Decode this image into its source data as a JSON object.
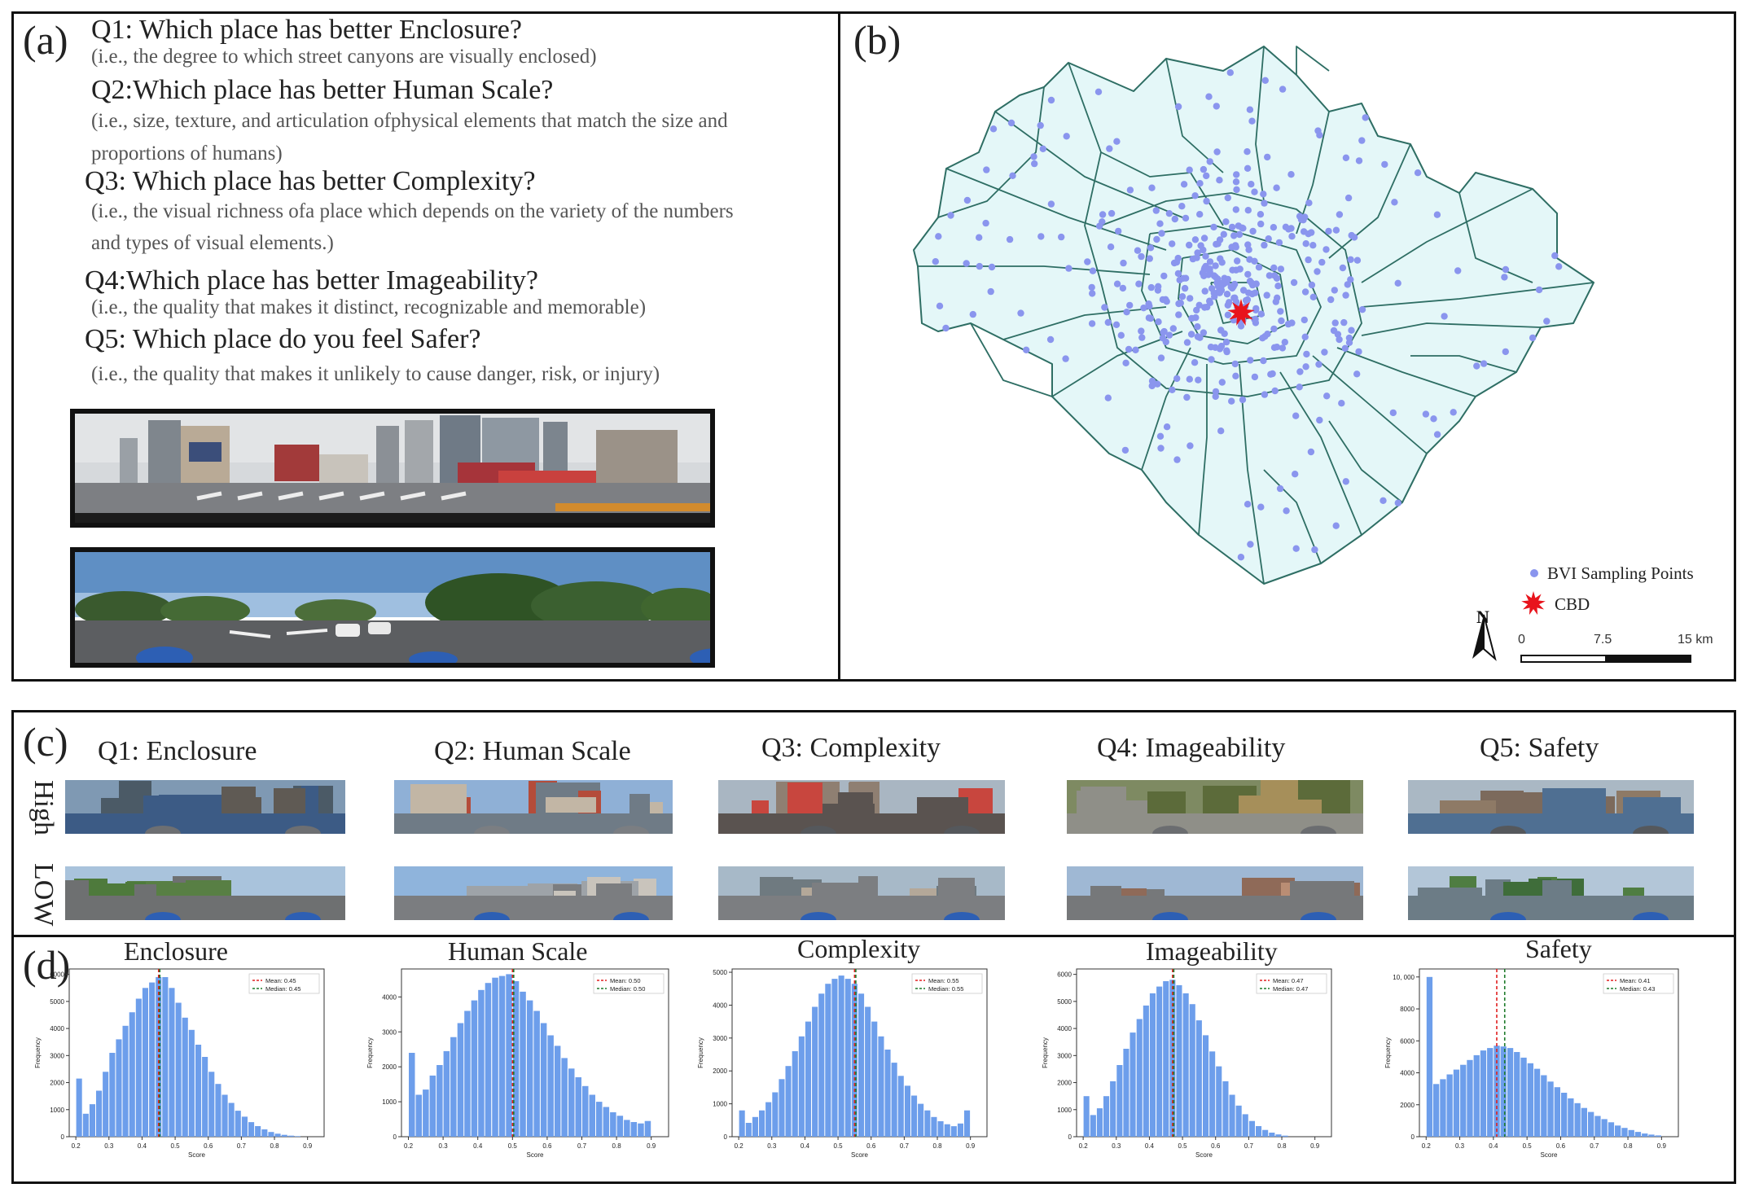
{
  "panel_a": {
    "label": "(a)",
    "questions": [
      {
        "title": "Q1: Which place has better Enclosure?",
        "lines": [
          "(i.e., the degree to which street canyons are visually enclosed)"
        ]
      },
      {
        "title": "Q2:Which place has better Human Scale?",
        "lines": [
          "(i.e., size, texture, and articulation ofphysical elements that match the size and",
          "proportions of humans)"
        ]
      },
      {
        "title": "Q3: Which place has better Complexity?",
        "lines": [
          "(i.e., the visual richness ofa place which depends on the variety of the numbers",
          "and types of visual elements.)"
        ]
      },
      {
        "title": "Q4:Which place has better Imageability?",
        "lines": [
          "(i.e., the quality that makes it distinct, recognizable and memorable)"
        ]
      },
      {
        "title": "Q5: Which place do you feel Safer?",
        "lines": [
          "(i.e., the quality that makes it unlikely to cause danger, risk, or injury)"
        ]
      }
    ]
  },
  "panel_b": {
    "label": "(b)",
    "legend": {
      "points": "BVI Sampling Points",
      "cbd": "CBD"
    },
    "north": "N",
    "scalebar": {
      "t0": "0",
      "t1": "7.5",
      "t2": "15 km"
    },
    "colors": {
      "fill": "#e4f7f8",
      "boundary": "#2e6e64",
      "points": "#8a95ee",
      "cbd": "#e8141c"
    }
  },
  "panel_c": {
    "label": "(c)",
    "rows": [
      "High",
      "LOW"
    ],
    "titles": [
      "Q1: Enclosure",
      "Q2: Human Scale",
      "Q3: Complexity",
      "Q4: Imageability",
      "Q5: Safety"
    ]
  },
  "panel_d": {
    "label": "(d)",
    "colors": {
      "bar": "#6d9eeb",
      "mean": "#e02020",
      "median": "#1d7a2a"
    }
  },
  "chart_data": [
    {
      "type": "bar",
      "title": "Enclosure",
      "xlabel": "Score",
      "ylabel": "Frequency",
      "x": [
        0.21,
        0.23,
        0.25,
        0.27,
        0.29,
        0.31,
        0.33,
        0.35,
        0.37,
        0.39,
        0.41,
        0.43,
        0.45,
        0.47,
        0.49,
        0.51,
        0.53,
        0.55,
        0.57,
        0.59,
        0.61,
        0.63,
        0.65,
        0.67,
        0.69,
        0.71,
        0.73,
        0.75,
        0.77,
        0.79,
        0.81,
        0.83,
        0.85,
        0.87
      ],
      "values": [
        2150,
        850,
        1200,
        1700,
        2400,
        3100,
        3600,
        4100,
        4600,
        5100,
        5500,
        5700,
        5900,
        5900,
        5500,
        4950,
        4400,
        3950,
        3400,
        2950,
        2400,
        1950,
        1550,
        1250,
        960,
        740,
        540,
        390,
        270,
        175,
        110,
        70,
        40,
        20
      ],
      "xlim": [
        0.18,
        0.95
      ],
      "ylim": [
        0,
        6200
      ],
      "yticks": [
        0,
        1000,
        2000,
        3000,
        4000,
        5000,
        6000
      ],
      "xticks": [
        0.2,
        0.3,
        0.4,
        0.5,
        0.6,
        0.7,
        0.8,
        0.9
      ],
      "legend": [
        "Mean: 0.45",
        "Median: 0.45"
      ],
      "mean": 0.45,
      "median": 0.45
    },
    {
      "type": "bar",
      "title": "Human Scale",
      "xlabel": "Score",
      "ylabel": "Frequency",
      "x": [
        0.21,
        0.23,
        0.25,
        0.27,
        0.29,
        0.31,
        0.33,
        0.35,
        0.37,
        0.39,
        0.41,
        0.43,
        0.45,
        0.47,
        0.49,
        0.51,
        0.53,
        0.55,
        0.57,
        0.59,
        0.61,
        0.63,
        0.65,
        0.67,
        0.69,
        0.71,
        0.73,
        0.75,
        0.77,
        0.79,
        0.81,
        0.83,
        0.85,
        0.87,
        0.89
      ],
      "values": [
        2400,
        1200,
        1350,
        1750,
        2050,
        2450,
        2850,
        3250,
        3600,
        3900,
        4200,
        4400,
        4550,
        4600,
        4650,
        4450,
        4150,
        3900,
        3600,
        3250,
        2900,
        2600,
        2250,
        1950,
        1700,
        1450,
        1200,
        1000,
        850,
        700,
        600,
        480,
        420,
        380,
        450
      ],
      "xlim": [
        0.18,
        0.95
      ],
      "ylim": [
        0,
        4800
      ],
      "yticks": [
        0,
        1000,
        2000,
        3000,
        4000
      ],
      "xticks": [
        0.2,
        0.3,
        0.4,
        0.5,
        0.6,
        0.7,
        0.8,
        0.9
      ],
      "legend": [
        "Mean: 0.50",
        "Median: 0.50"
      ],
      "mean": 0.5,
      "median": 0.5
    },
    {
      "type": "bar",
      "title": "Complexity",
      "xlabel": "Score",
      "ylabel": "Frequency",
      "x": [
        0.21,
        0.23,
        0.25,
        0.27,
        0.29,
        0.31,
        0.33,
        0.35,
        0.37,
        0.39,
        0.41,
        0.43,
        0.45,
        0.47,
        0.49,
        0.51,
        0.53,
        0.55,
        0.57,
        0.59,
        0.61,
        0.63,
        0.65,
        0.67,
        0.69,
        0.71,
        0.73,
        0.75,
        0.77,
        0.79,
        0.81,
        0.83,
        0.85,
        0.87,
        0.89
      ],
      "values": [
        800,
        420,
        600,
        800,
        1050,
        1350,
        1750,
        2150,
        2600,
        3050,
        3500,
        3950,
        4350,
        4650,
        4800,
        4900,
        4800,
        4650,
        4350,
        3950,
        3500,
        3050,
        2650,
        2250,
        1850,
        1550,
        1250,
        1000,
        800,
        600,
        470,
        380,
        320,
        400,
        800
      ],
      "xlim": [
        0.18,
        0.95
      ],
      "ylim": [
        0,
        5100
      ],
      "yticks": [
        0,
        1000,
        2000,
        3000,
        4000,
        5000
      ],
      "xticks": [
        0.2,
        0.3,
        0.4,
        0.5,
        0.6,
        0.7,
        0.8,
        0.9
      ],
      "legend": [
        "Mean: 0.55",
        "Median: 0.55"
      ],
      "mean": 0.55,
      "median": 0.55
    },
    {
      "type": "bar",
      "title": "Imageability",
      "xlabel": "Score",
      "ylabel": "Frequency",
      "x": [
        0.21,
        0.23,
        0.25,
        0.27,
        0.29,
        0.31,
        0.33,
        0.35,
        0.37,
        0.39,
        0.41,
        0.43,
        0.45,
        0.47,
        0.49,
        0.51,
        0.53,
        0.55,
        0.57,
        0.59,
        0.61,
        0.63,
        0.65,
        0.67,
        0.69,
        0.71,
        0.73,
        0.75,
        0.77,
        0.79,
        0.81
      ],
      "values": [
        1500,
        800,
        1050,
        1500,
        2050,
        2650,
        3250,
        3850,
        4350,
        4850,
        5300,
        5550,
        5750,
        5800,
        5600,
        5300,
        4900,
        4300,
        3750,
        3150,
        2600,
        2050,
        1550,
        1150,
        830,
        580,
        390,
        250,
        150,
        85,
        40
      ],
      "xlim": [
        0.18,
        0.95
      ],
      "ylim": [
        0,
        6200
      ],
      "yticks": [
        0,
        1000,
        2000,
        3000,
        4000,
        5000,
        6000
      ],
      "xticks": [
        0.2,
        0.3,
        0.4,
        0.5,
        0.6,
        0.7,
        0.8,
        0.9
      ],
      "legend": [
        "Mean: 0.47",
        "Median: 0.47"
      ],
      "mean": 0.47,
      "median": 0.47
    },
    {
      "type": "bar",
      "title": "Safety",
      "xlabel": "Score",
      "ylabel": "Frequency",
      "x": [
        0.21,
        0.23,
        0.25,
        0.27,
        0.29,
        0.31,
        0.33,
        0.35,
        0.37,
        0.39,
        0.41,
        0.43,
        0.45,
        0.47,
        0.49,
        0.51,
        0.53,
        0.55,
        0.57,
        0.59,
        0.61,
        0.63,
        0.65,
        0.67,
        0.69,
        0.71,
        0.73,
        0.75,
        0.77,
        0.79,
        0.81,
        0.83,
        0.85,
        0.87,
        0.89
      ],
      "values": [
        10000,
        3300,
        3600,
        3900,
        4200,
        4500,
        4800,
        5100,
        5400,
        5550,
        5700,
        5650,
        5550,
        5300,
        4950,
        4600,
        4250,
        3850,
        3450,
        3100,
        2750,
        2400,
        2100,
        1800,
        1550,
        1300,
        1100,
        900,
        700,
        550,
        420,
        300,
        200,
        130,
        80
      ],
      "xlim": [
        0.18,
        0.95
      ],
      "ylim": [
        0,
        10500
      ],
      "yticks": [
        0,
        2000,
        4000,
        6000,
        8000,
        10000
      ],
      "ytick_labels": [
        "0",
        "2000",
        "4000",
        "6000",
        "8000",
        "10, 000"
      ],
      "xticks": [
        0.2,
        0.3,
        0.4,
        0.5,
        0.6,
        0.7,
        0.8,
        0.9
      ],
      "legend": [
        "Mean: 0.41",
        "Median: 0.43"
      ],
      "mean": 0.41,
      "median": 0.43
    }
  ]
}
